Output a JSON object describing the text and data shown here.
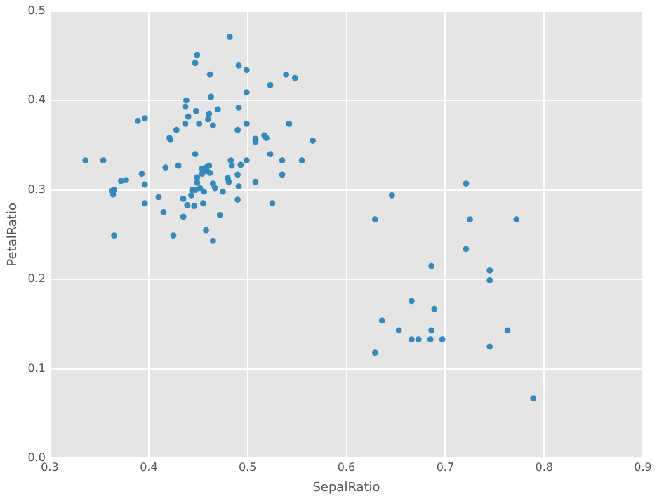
{
  "chart_data": {
    "type": "scatter",
    "xlabel": "SepalRatio",
    "ylabel": "PetalRatio",
    "xlim": [
      0.3,
      0.9
    ],
    "ylim": [
      0,
      0.5
    ],
    "xticks": [
      0.3,
      0.4,
      0.5,
      0.6,
      0.7,
      0.8,
      0.9
    ],
    "yticks": [
      {
        "value": 0,
        "label": "0.0"
      },
      0.1,
      0.2,
      0.3,
      0.4,
      0.5
    ],
    "grid": true,
    "marker": "circle",
    "legend": false,
    "series": [
      {
        "color": "#348abd",
        "x": [
          0.482,
          0.449,
          0.447,
          0.462,
          0.491,
          0.499,
          0.499,
          0.463,
          0.438,
          0.437,
          0.491,
          0.448,
          0.461,
          0.47,
          0.44,
          0.46,
          0.396,
          0.389,
          0.437,
          0.451,
          0.465,
          0.499,
          0.428,
          0.49,
          0.421,
          0.422,
          0.508,
          0.508,
          0.517,
          0.519,
          0.447,
          0.336,
          0.354,
          0.417,
          0.43,
          0.454,
          0.458,
          0.461,
          0.459,
          0.462,
          0.454,
          0.449,
          0.483,
          0.484,
          0.493,
          0.499,
          0.49,
          0.48,
          0.481,
          0.508,
          0.393,
          0.372,
          0.377,
          0.396,
          0.363,
          0.365,
          0.364,
          0.396,
          0.41,
          0.415,
          0.365,
          0.425,
          0.449,
          0.465,
          0.467,
          0.452,
          0.444,
          0.447,
          0.456,
          0.443,
          0.475,
          0.491,
          0.435,
          0.439,
          0.446,
          0.455,
          0.49,
          0.435,
          0.472,
          0.458,
          0.465,
          0.523,
          0.539,
          0.548,
          0.542,
          0.566,
          0.523,
          0.535,
          0.555,
          0.535,
          0.525,
          0.646,
          0.629,
          0.721,
          0.725,
          0.772,
          0.721,
          0.686,
          0.745,
          0.745,
          0.666,
          0.689,
          0.636,
          0.653,
          0.686,
          0.763,
          0.666,
          0.673,
          0.685,
          0.697,
          0.629,
          0.745,
          0.789
        ],
        "values": [
          0.471,
          0.451,
          0.442,
          0.429,
          0.439,
          0.434,
          0.409,
          0.404,
          0.4,
          0.393,
          0.392,
          0.388,
          0.385,
          0.39,
          0.382,
          0.379,
          0.38,
          0.377,
          0.374,
          0.374,
          0.372,
          0.374,
          0.367,
          0.367,
          0.358,
          0.356,
          0.357,
          0.354,
          0.361,
          0.358,
          0.34,
          0.333,
          0.333,
          0.325,
          0.327,
          0.324,
          0.325,
          0.327,
          0.321,
          0.319,
          0.318,
          0.314,
          0.333,
          0.327,
          0.328,
          0.333,
          0.317,
          0.313,
          0.309,
          0.309,
          0.318,
          0.31,
          0.311,
          0.306,
          0.299,
          0.3,
          0.295,
          0.285,
          0.292,
          0.275,
          0.249,
          0.249,
          0.308,
          0.307,
          0.302,
          0.302,
          0.3,
          0.3,
          0.298,
          0.294,
          0.298,
          0.304,
          0.29,
          0.283,
          0.282,
          0.285,
          0.289,
          0.27,
          0.272,
          0.255,
          0.243,
          0.417,
          0.429,
          0.425,
          0.374,
          0.355,
          0.34,
          0.333,
          0.333,
          0.317,
          0.285,
          0.294,
          0.267,
          0.307,
          0.267,
          0.267,
          0.234,
          0.215,
          0.21,
          0.199,
          0.176,
          0.167,
          0.154,
          0.143,
          0.143,
          0.143,
          0.133,
          0.133,
          0.133,
          0.133,
          0.118,
          0.125,
          0.067
        ]
      }
    ]
  }
}
